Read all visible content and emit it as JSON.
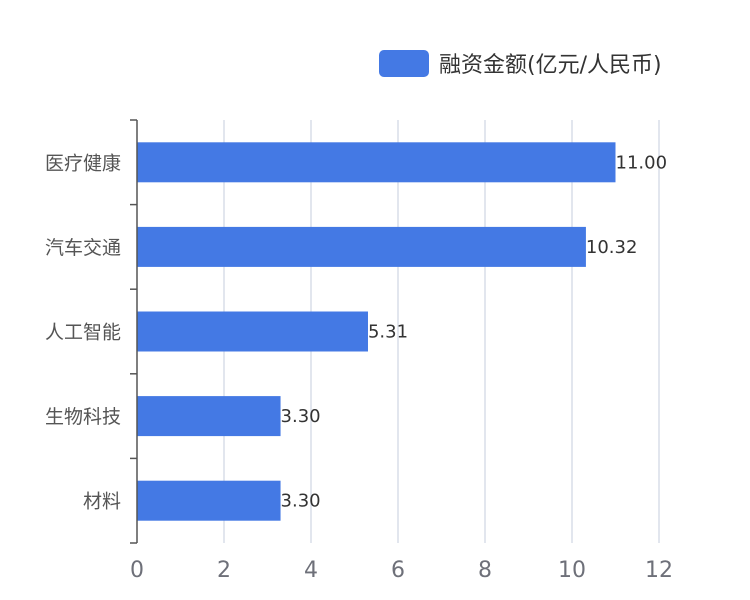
{
  "legend": {
    "label": "融资金额(亿元/人民币)"
  },
  "colors": {
    "bar": "#4479e4",
    "axis": "#555555",
    "grid": "#d8dde8"
  },
  "chart_data": {
    "type": "bar",
    "orientation": "horizontal",
    "categories": [
      "医疗健康",
      "汽车交通",
      "人工智能",
      "生物科技",
      "材料"
    ],
    "series": [
      {
        "name": "融资金额(亿元/人民币)",
        "values": [
          11.0,
          10.32,
          5.31,
          3.3,
          3.3
        ]
      }
    ],
    "value_labels": [
      "11.00",
      "10.32",
      "5.31",
      "3.30",
      "3.30"
    ],
    "x_ticks": [
      "0",
      "2",
      "4",
      "6",
      "8",
      "10",
      "12"
    ],
    "xlim": [
      0,
      12
    ],
    "grid": "vertical",
    "legend_position": "top-right"
  }
}
